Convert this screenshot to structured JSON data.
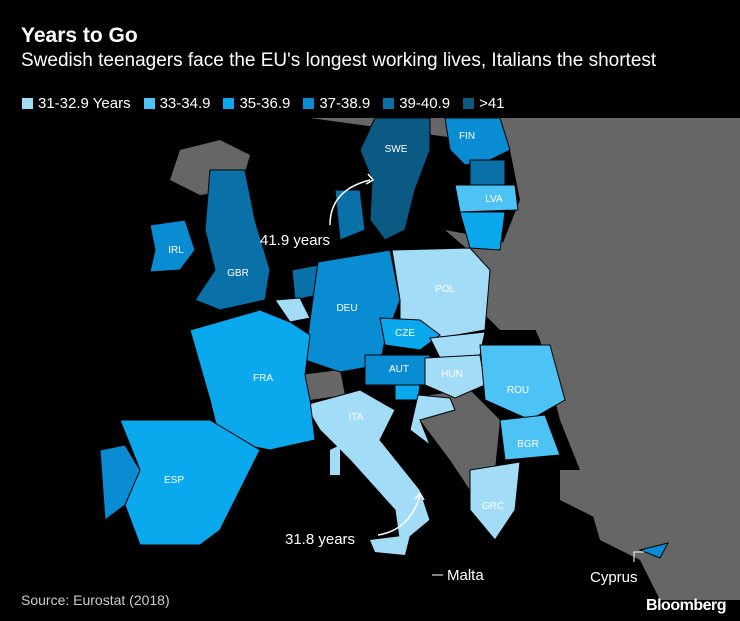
{
  "title": "Years to Go",
  "subtitle": "Swedish teenagers face the EU's longest working lives, Italians the shortest",
  "legend": [
    {
      "label": "31-32.9 Years",
      "color": "#a3dcf7"
    },
    {
      "label": "33-34.9",
      "color": "#4cc2f5"
    },
    {
      "label": "35-36.9",
      "color": "#0aa9ee"
    },
    {
      "label": "37-38.9",
      "color": "#0a8cd2"
    },
    {
      "label": "39-40.9",
      "color": "#0a70a8"
    },
    {
      "label": ">41",
      "color": "#0b5a83"
    }
  ],
  "non_eu_color": "#666666",
  "countries": [
    {
      "code": "SWE",
      "cat": 5
    },
    {
      "code": "FIN",
      "cat": 3
    },
    {
      "code": "EST",
      "cat": 4,
      "label": ""
    },
    {
      "code": "LVA",
      "cat": 1
    },
    {
      "code": "LTU",
      "cat": 2,
      "label": ""
    },
    {
      "code": "IRL",
      "cat": 3
    },
    {
      "code": "GBR",
      "cat": 4
    },
    {
      "code": "NLD",
      "cat": 4,
      "label": ""
    },
    {
      "code": "BEL",
      "cat": 0,
      "label": ""
    },
    {
      "code": "DNK",
      "cat": 4,
      "label": ""
    },
    {
      "code": "DEU",
      "cat": 3
    },
    {
      "code": "POL",
      "cat": 0
    },
    {
      "code": "CZE",
      "cat": 2
    },
    {
      "code": "SVK",
      "cat": 0,
      "label": ""
    },
    {
      "code": "AUT",
      "cat": 3
    },
    {
      "code": "HUN",
      "cat": 0
    },
    {
      "code": "ROU",
      "cat": 1
    },
    {
      "code": "BGR",
      "cat": 1
    },
    {
      "code": "GRC",
      "cat": 0
    },
    {
      "code": "ITA",
      "cat": 0
    },
    {
      "code": "SVN",
      "cat": 2,
      "label": ""
    },
    {
      "code": "HRV",
      "cat": 0,
      "label": ""
    },
    {
      "code": "FRA",
      "cat": 2
    },
    {
      "code": "ESP",
      "cat": 2
    },
    {
      "code": "PRT",
      "cat": 3,
      "label": ""
    },
    {
      "code": "CYP",
      "cat": 3,
      "label": ""
    }
  ],
  "annotations": {
    "sweden": "41.9 years",
    "italy": "31.8 years",
    "malta": "Malta",
    "cyprus": "Cyprus"
  },
  "source": "Source: Eurostat (2018)",
  "brand": "Bloomberg"
}
